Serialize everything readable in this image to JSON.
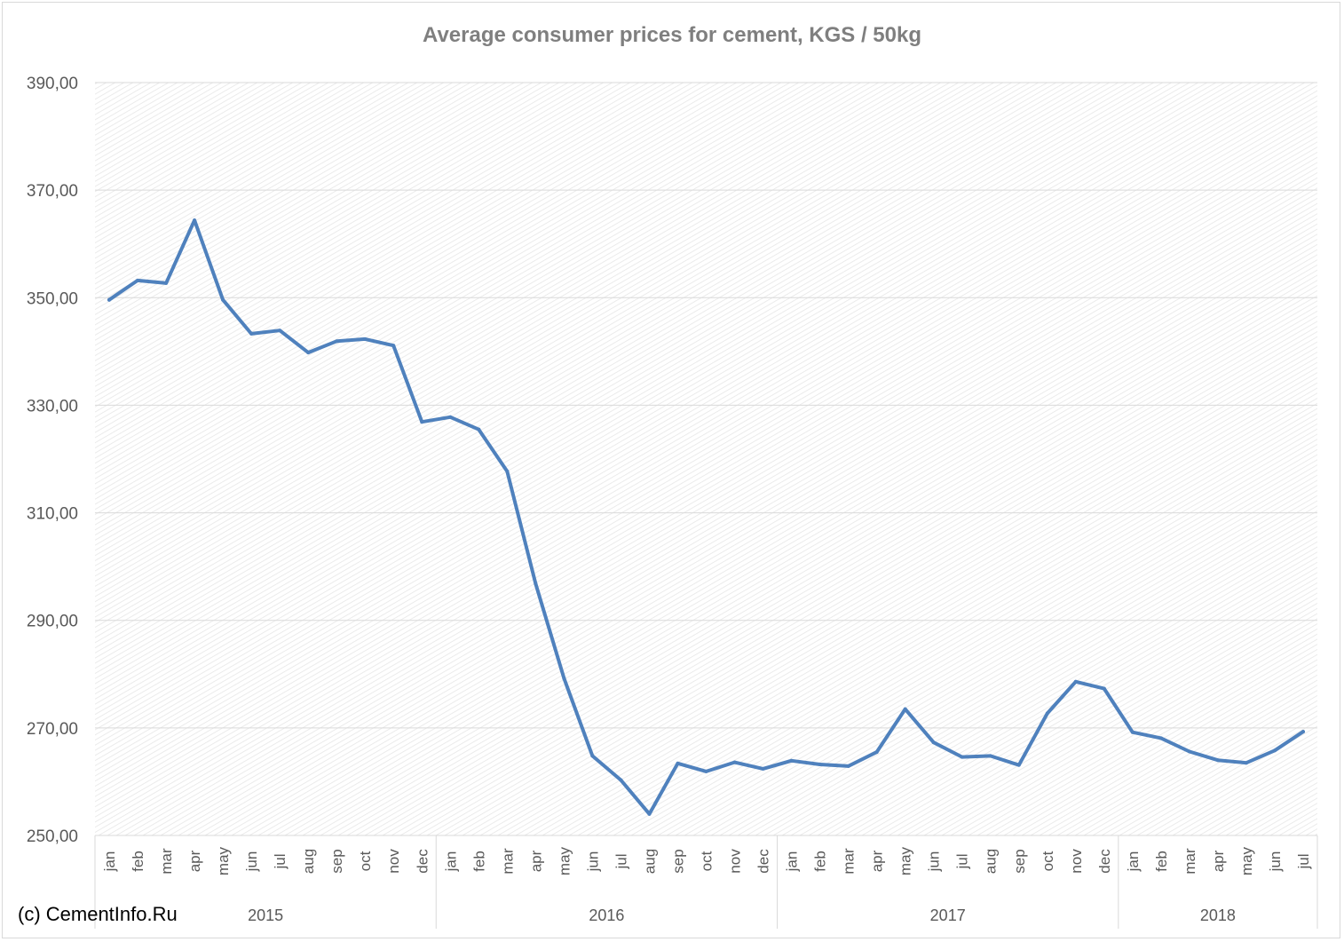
{
  "chart_data": {
    "type": "line",
    "title": "Average consumer prices for cement, KGS / 50kg",
    "copyright": "(c) CementInfo.Ru",
    "ylim": [
      250,
      390
    ],
    "yticks": [
      "250,00",
      "270,00",
      "290,00",
      "310,00",
      "330,00",
      "350,00",
      "370,00",
      "390,00"
    ],
    "grid": true,
    "legend": "none",
    "line_color": "#4f81bd",
    "months": [
      "jan",
      "feb",
      "mar",
      "apr",
      "may",
      "jun",
      "jul",
      "aug",
      "sep",
      "oct",
      "nov",
      "dec",
      "jan",
      "feb",
      "mar",
      "apr",
      "may",
      "jun",
      "jul",
      "aug",
      "sep",
      "oct",
      "nov",
      "dec",
      "jan",
      "feb",
      "mar",
      "apr",
      "may",
      "jun",
      "jul",
      "aug",
      "sep",
      "oct",
      "nov",
      "dec",
      "jan",
      "feb",
      "mar",
      "apr",
      "may",
      "jun",
      "jul"
    ],
    "years": [
      {
        "label": "2015",
        "months": 12
      },
      {
        "label": "2016",
        "months": 12
      },
      {
        "label": "2017",
        "months": 12
      },
      {
        "label": "2018",
        "months": 7
      }
    ],
    "series": [
      {
        "values": [
          349.6,
          353.2,
          352.7,
          364.4,
          349.6,
          343.3,
          343.9,
          339.8,
          341.9,
          342.3,
          341.1,
          326.9,
          327.8,
          325.5,
          317.7,
          296.8,
          279.2,
          264.8,
          260.3,
          254.0,
          263.4,
          261.9,
          263.6,
          262.4,
          263.9,
          263.2,
          262.9,
          265.5,
          273.5,
          267.3,
          264.6,
          264.8,
          263.1,
          272.7,
          278.6,
          277.3,
          269.2,
          268.1,
          265.6,
          264.0,
          263.5,
          265.8,
          269.3
        ]
      }
    ]
  }
}
